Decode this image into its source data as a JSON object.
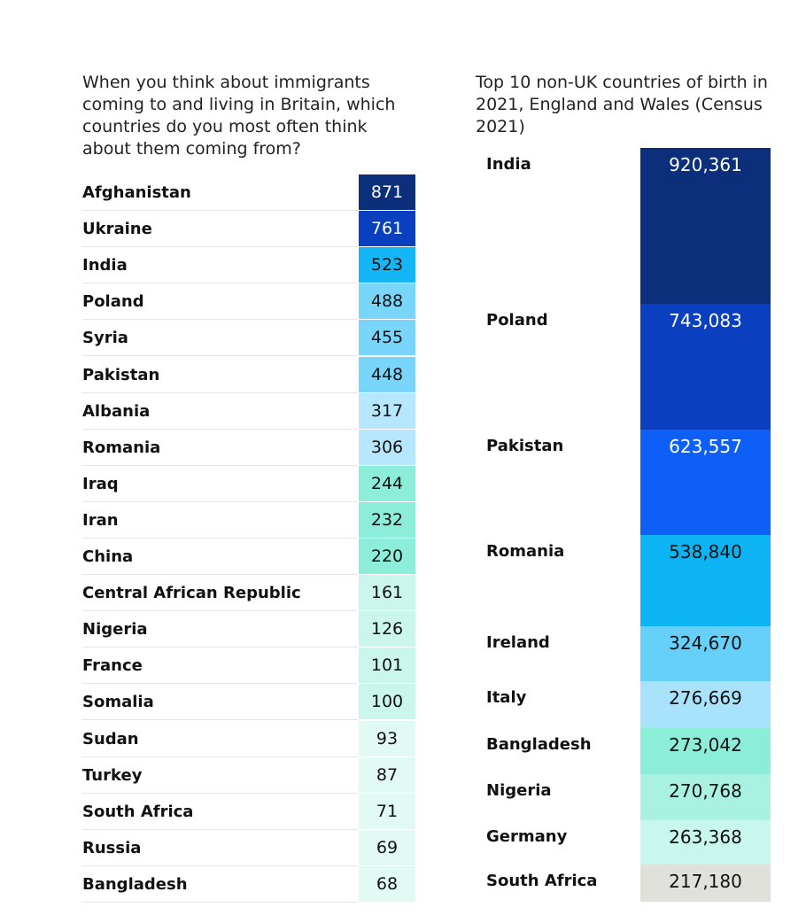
{
  "chart_data": [
    {
      "type": "table",
      "title": "When you think about immigrants coming to and living in Britain, which countries do you most often think about them coming from?",
      "categories": [
        "Afghanistan",
        "Ukraine",
        "India",
        "Poland",
        "Syria",
        "Pakistan",
        "Albania",
        "Romania",
        "Iraq",
        "Iran",
        "China",
        "Central African Republic",
        "Nigeria",
        "France",
        "Somalia",
        "Sudan",
        "Turkey",
        "South Africa",
        "Russia",
        "Bangladesh"
      ],
      "values": [
        871,
        761,
        523,
        488,
        455,
        448,
        317,
        306,
        244,
        232,
        220,
        161,
        126,
        101,
        100,
        93,
        87,
        71,
        69,
        68
      ],
      "colors": [
        "#0b2f7a",
        "#0a3fbf",
        "#14b6f5",
        "#7ad5fb",
        "#7ad5fb",
        "#7ad5fb",
        "#b6e7fc",
        "#b6e7fc",
        "#8cedd8",
        "#8cedd8",
        "#8cedd8",
        "#cbf6ec",
        "#cbf6ec",
        "#cbf6ec",
        "#cbf6ec",
        "#e2faf4",
        "#e2faf4",
        "#e2faf4",
        "#e2faf4",
        "#e2faf4"
      ],
      "text_colors": [
        "#ffffff",
        "#ffffff",
        "#111111",
        "#111111",
        "#111111",
        "#111111",
        "#111111",
        "#111111",
        "#111111",
        "#111111",
        "#111111",
        "#111111",
        "#111111",
        "#111111",
        "#111111",
        "#111111",
        "#111111",
        "#111111",
        "#111111",
        "#111111"
      ]
    },
    {
      "type": "bar",
      "title": "Top 10 non-UK countries of birth in 2021, England and Wales (Census 2021)",
      "categories": [
        "India",
        "Poland",
        "Pakistan",
        "Romania",
        "Ireland",
        "Italy",
        "Bangladesh",
        "Nigeria",
        "Germany",
        "South Africa"
      ],
      "values": [
        920361,
        743083,
        623557,
        538840,
        324670,
        276669,
        273042,
        270768,
        263368,
        217180
      ],
      "labels": [
        "920,361",
        "743,083",
        "623,557",
        "538,840",
        "324,670",
        "276,669",
        "273,042",
        "270,768",
        "263,368",
        "217,180"
      ],
      "colors": [
        "#0b2f7a",
        "#0a3fbf",
        "#0d5ff7",
        "#0cb4f3",
        "#66cffa",
        "#a9e3fb",
        "#8cedd8",
        "#a9f2e2",
        "#c8f7ee",
        "#e1e1dc"
      ],
      "text_colors": [
        "#ffffff",
        "#ffffff",
        "#ffffff",
        "#111111",
        "#111111",
        "#111111",
        "#111111",
        "#111111",
        "#111111",
        "#111111"
      ]
    }
  ]
}
